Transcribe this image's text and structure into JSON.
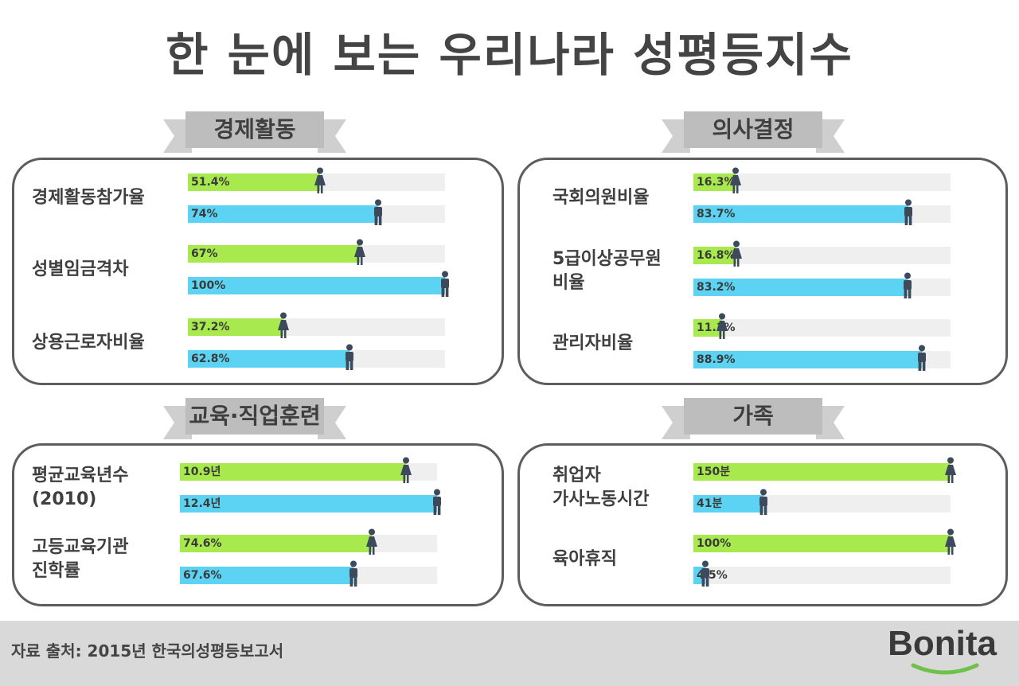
{
  "title": "한 눈에 보는 우리나라 성평등지수",
  "footer": {
    "source": "자료 출처: 2015년 한국의성평등보고서",
    "brand": "Bonita"
  },
  "colors": {
    "female_bar": "#a8e94d",
    "male_bar": "#5dd3f3",
    "track": "#efefef",
    "icon": "#3d4a5c"
  },
  "chart_data": [
    {
      "type": "bar",
      "title": "경제활동",
      "categories": [
        "경제활동참가율",
        "성별임금격차",
        "상용근로자비율"
      ],
      "series": [
        {
          "icon": "female-icon",
          "values": [
            51.4,
            67,
            37.2
          ],
          "labels": [
            "51.4%",
            "67%",
            "37.2%"
          ]
        },
        {
          "icon": "male-icon",
          "values": [
            74,
            100,
            62.8
          ],
          "labels": [
            "74%",
            "100%",
            "62.8%"
          ]
        }
      ]
    },
    {
      "type": "bar",
      "title": "의사결정",
      "categories": [
        "국회의원비율",
        "5급이상공무원\n비율",
        "관리자비율"
      ],
      "series": [
        {
          "icon": "female-icon",
          "values": [
            16.3,
            16.8,
            11.1
          ],
          "labels": [
            "16.3%",
            "16.8%",
            "11.1%"
          ]
        },
        {
          "icon": "male-icon",
          "values": [
            83.7,
            83.2,
            88.9
          ],
          "labels": [
            "83.7%",
            "83.2%",
            "88.9%"
          ]
        }
      ]
    },
    {
      "type": "bar",
      "title": "교육·직업훈련",
      "categories": [
        "평균교육년수\n(2010)",
        "고등교육기관\n진학률"
      ],
      "series": [
        {
          "icon": "female-icon",
          "values": [
            10.9,
            74.6
          ],
          "labels": [
            "10.9년",
            "74.6%"
          ]
        },
        {
          "icon": "male-icon",
          "values": [
            12.4,
            67.6
          ],
          "labels": [
            "12.4년",
            "67.6%"
          ]
        }
      ]
    },
    {
      "type": "bar",
      "title": "가족",
      "categories": [
        "취업자\n가사노동시간",
        "육아휴직"
      ],
      "series": [
        {
          "icon": "female-icon",
          "values": [
            150,
            100
          ],
          "labels": [
            "150분",
            "100%"
          ]
        },
        {
          "icon": "male-icon",
          "values": [
            41,
            4.5
          ],
          "labels": [
            "41분",
            "4.5%"
          ]
        }
      ]
    }
  ]
}
